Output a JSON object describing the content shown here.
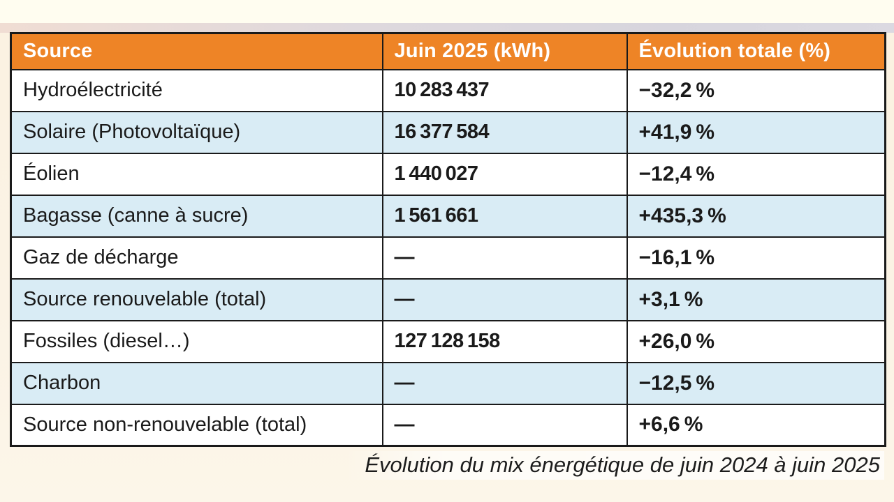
{
  "table": {
    "headers": [
      "Source",
      "Juin 2025 (kWh)",
      "Évolution totale (%)"
    ],
    "rows": [
      {
        "source": "Hydroélectricité",
        "kwh": "10 283 437",
        "evolution": "−32,2 %"
      },
      {
        "source": "Solaire (Photovoltaïque)",
        "kwh": "16 377 584",
        "evolution": "+41,9 %"
      },
      {
        "source": "Éolien",
        "kwh": "1 440 027",
        "evolution": "−12,4 %"
      },
      {
        "source": "Bagasse (canne à sucre)",
        "kwh": "1 561 661",
        "evolution": "+435,3 %"
      },
      {
        "source": "Gaz de décharge",
        "kwh": "—",
        "evolution": "−16,1 %"
      },
      {
        "source": "Source renouvelable (total)",
        "kwh": "—",
        "evolution": "+3,1 %"
      },
      {
        "source": "Fossiles (diesel…)",
        "kwh": "127 128 158",
        "evolution": "+26,0 %"
      },
      {
        "source": "Charbon",
        "kwh": "—",
        "evolution": "−12,5 %"
      },
      {
        "source": "Source non-renouvelable (total)",
        "kwh": "—",
        "evolution": "+6,6 %"
      }
    ]
  },
  "caption": "Évolution du mix énergétique de juin 2024 à juin 2025",
  "colors": {
    "header_bg": "#ee8426",
    "row_alt_bg": "#d9ecf5",
    "border": "#1a1a1a",
    "page_bg": "#fbf3e3",
    "header_text": "#ffffff"
  }
}
